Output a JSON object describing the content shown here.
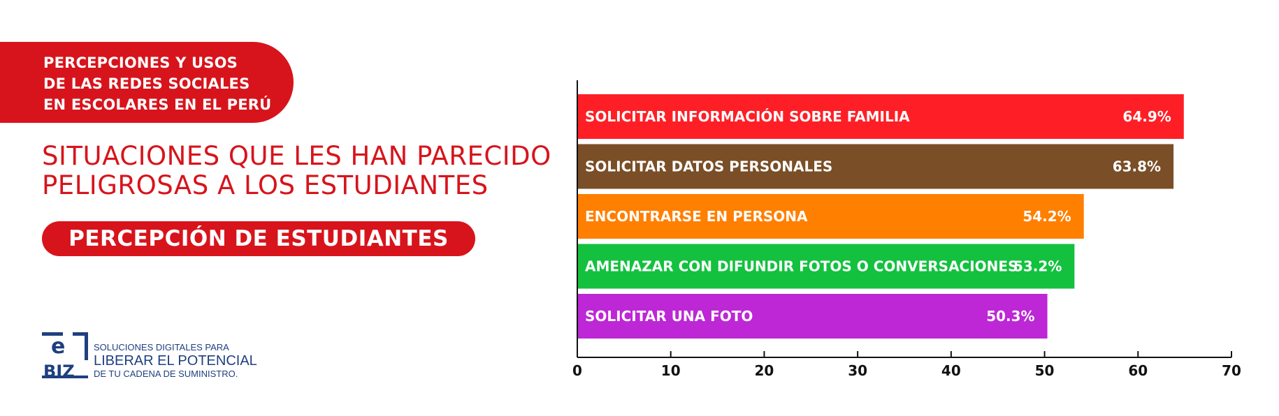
{
  "header": {
    "banner_lines": [
      "PERCEPCIONES Y USOS",
      "DE LAS REDES SOCIALES",
      "EN ESCOLARES EN EL PERÚ"
    ],
    "subtitle_lines": [
      "SITUACIONES QUE LES HAN PARECIDO",
      "PELIGROSAS A LOS ESTUDIANTES"
    ],
    "pill_label": "PERCEPCIÓN DE ESTUDIANTES"
  },
  "logo": {
    "mark_top": "e",
    "mark_bottom": "BIZ",
    "line1": "SOLUCIONES DIGITALES PARA",
    "line2": "LIBERAR EL POTENCIAL",
    "line3": "DE TU CADENA DE SUMINISTRO."
  },
  "colors": {
    "brand_red": "#d7141c",
    "logo_blue": "#1f3f80"
  },
  "chart_data": {
    "type": "bar",
    "orientation": "horizontal",
    "categories": [
      "SOLICITAR INFORMACIÓN SOBRE FAMILIA",
      "SOLICITAR DATOS PERSONALES",
      "ENCONTRARSE EN PERSONA",
      "AMENAZAR CON DIFUNDIR FOTOS O CONVERSACIONES",
      "SOLICITAR UNA FOTO"
    ],
    "values": [
      64.9,
      63.8,
      54.2,
      53.2,
      50.3
    ],
    "value_labels": [
      "64.9%",
      "63.8%",
      "54.2%",
      "53.2%",
      "50.3%"
    ],
    "bar_colors": [
      "#fe1f26",
      "#7a4e27",
      "#ff7f00",
      "#13c13f",
      "#bd27d6"
    ],
    "xlim": [
      0,
      70
    ],
    "xticks": [
      0,
      10,
      20,
      30,
      40,
      50,
      60,
      70
    ],
    "title": "",
    "xlabel": "",
    "ylabel": "",
    "grid": false,
    "legend": "none"
  }
}
